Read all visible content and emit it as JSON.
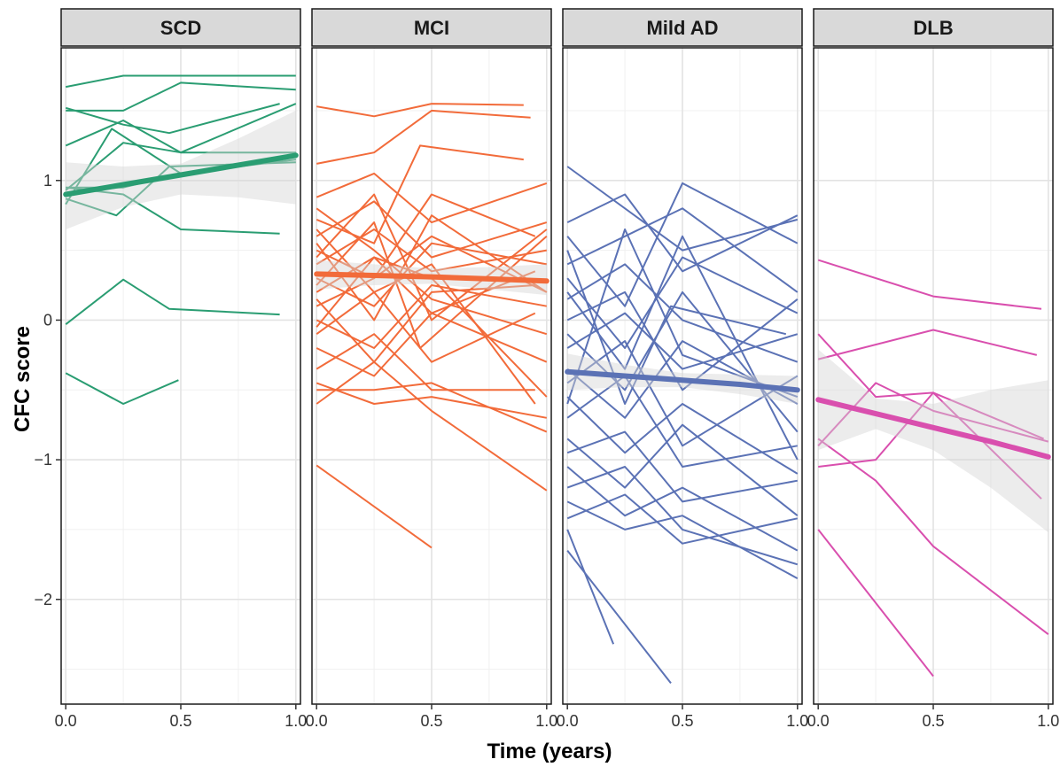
{
  "chart_data": {
    "type": "line",
    "xlabel": "Time (years)",
    "ylabel": "CFC score",
    "xlim": [
      -0.02,
      1.02
    ],
    "ylim": [
      -2.75,
      1.95
    ],
    "x_ticks": [
      0.0,
      0.5,
      1.0
    ],
    "x_tick_labels": [
      "0.0",
      "0.5",
      "1.0"
    ],
    "y_ticks": [
      1,
      0,
      -1,
      -2
    ],
    "y_tick_labels": [
      "1",
      "0",
      "−1",
      "−2"
    ],
    "grid": true,
    "legend": "none",
    "panels": [
      {
        "name": "SCD",
        "color": "#2a9d72",
        "trend": {
          "x": [
            0,
            0.25,
            0.5,
            0.75,
            1.0
          ],
          "y": [
            0.9,
            0.97,
            1.04,
            1.11,
            1.18
          ],
          "band_low": [
            0.65,
            0.81,
            0.9,
            0.88,
            0.83
          ],
          "band_high": [
            1.13,
            1.1,
            1.12,
            1.3,
            1.5
          ]
        },
        "subjects": [
          {
            "x": [
              0,
              0.25,
              1.0
            ],
            "y": [
              1.67,
              1.75,
              1.75
            ]
          },
          {
            "x": [
              0,
              0.25,
              0.5,
              1.0
            ],
            "y": [
              1.5,
              1.5,
              1.7,
              1.65
            ]
          },
          {
            "x": [
              0,
              0.25,
              0.45,
              0.93
            ],
            "y": [
              1.52,
              1.4,
              1.34,
              1.55
            ]
          },
          {
            "x": [
              0,
              0.25,
              0.5,
              1.0
            ],
            "y": [
              1.25,
              1.43,
              1.2,
              1.55
            ]
          },
          {
            "x": [
              0,
              0.2,
              0.5,
              1.0
            ],
            "y": [
              0.83,
              1.37,
              1.05,
              1.17
            ]
          },
          {
            "x": [
              0,
              0.25,
              0.5,
              1.0
            ],
            "y": [
              0.93,
              1.27,
              1.2,
              1.2
            ]
          },
          {
            "x": [
              0,
              0.25,
              0.5,
              1.0
            ],
            "y": [
              0.95,
              0.95,
              1.05,
              1.15
            ]
          },
          {
            "x": [
              0,
              0.22,
              0.45,
              1.0
            ],
            "y": [
              0.87,
              0.75,
              1.1,
              1.13
            ]
          },
          {
            "x": [
              0,
              0.25,
              0.5,
              0.93
            ],
            "y": [
              0.95,
              0.9,
              0.65,
              0.62
            ]
          },
          {
            "x": [
              0,
              0.25,
              0.45,
              0.93
            ],
            "y": [
              -0.03,
              0.29,
              0.08,
              0.04
            ]
          },
          {
            "x": [
              0,
              0.25,
              0.49
            ],
            "y": [
              -0.38,
              -0.6,
              -0.43
            ]
          }
        ]
      },
      {
        "name": "MCI",
        "color": "#f26b3a",
        "trend": {
          "x": [
            0,
            0.25,
            0.5,
            0.75,
            1.0
          ],
          "y": [
            0.33,
            0.32,
            0.31,
            0.295,
            0.28
          ],
          "band_low": [
            0.22,
            0.25,
            0.26,
            0.22,
            0.18
          ],
          "band_high": [
            0.43,
            0.4,
            0.37,
            0.38,
            0.4
          ]
        },
        "subjects": [
          {
            "x": [
              0,
              0.25,
              0.5,
              0.9
            ],
            "y": [
              1.53,
              1.46,
              1.55,
              1.54
            ]
          },
          {
            "x": [
              0,
              0.25,
              0.5,
              0.93
            ],
            "y": [
              1.12,
              1.2,
              1.5,
              1.45
            ]
          },
          {
            "x": [
              0,
              0.25,
              0.5,
              1.0
            ],
            "y": [
              0.88,
              1.05,
              0.7,
              0.98
            ]
          },
          {
            "x": [
              0,
              0.25,
              0.45,
              0.9
            ],
            "y": [
              0.72,
              0.55,
              1.25,
              1.15
            ]
          },
          {
            "x": [
              0,
              0.25,
              0.5,
              1.0
            ],
            "y": [
              0.6,
              0.85,
              0.45,
              0.7
            ]
          },
          {
            "x": [
              0,
              0.25,
              0.5,
              0.95
            ],
            "y": [
              0.5,
              0.3,
              0.9,
              0.6
            ]
          },
          {
            "x": [
              0,
              0.25,
              0.5,
              1.0
            ],
            "y": [
              0.4,
              0.65,
              0.35,
              0.5
            ]
          },
          {
            "x": [
              0,
              0.25,
              0.5,
              1.0
            ],
            "y": [
              0.3,
              0.1,
              0.55,
              0.4
            ]
          },
          {
            "x": [
              0,
              0.25,
              0.5,
              0.95
            ],
            "y": [
              0.2,
              0.45,
              0.05,
              0.35
            ]
          },
          {
            "x": [
              0,
              0.25,
              0.5,
              1.0
            ],
            "y": [
              0.1,
              0.3,
              0.6,
              0.2
            ]
          },
          {
            "x": [
              0,
              0.25,
              0.5,
              1.0
            ],
            "y": [
              0.0,
              -0.2,
              0.25,
              0.1
            ]
          },
          {
            "x": [
              0,
              0.25,
              0.5,
              0.95
            ],
            "y": [
              -0.1,
              0.2,
              -0.3,
              0.05
            ]
          },
          {
            "x": [
              0,
              0.25,
              0.5,
              1.0
            ],
            "y": [
              -0.2,
              -0.4,
              0.05,
              -0.3
            ]
          },
          {
            "x": [
              0,
              0.25,
              0.5,
              0.95
            ],
            "y": [
              -0.35,
              -0.1,
              -0.5,
              -0.5
            ]
          },
          {
            "x": [
              0,
              0.25,
              0.5,
              1.0
            ],
            "y": [
              -0.5,
              -0.5,
              -0.45,
              -0.8
            ]
          },
          {
            "x": [
              0,
              0.25,
              0.5,
              1.0
            ],
            "y": [
              -0.6,
              -0.3,
              -0.65,
              -1.22
            ]
          },
          {
            "x": [
              0,
              0.5
            ],
            "y": [
              -1.04,
              -1.63
            ]
          },
          {
            "x": [
              0,
              0.25,
              0.5,
              1.0
            ],
            "y": [
              0.8,
              0.5,
              0.15,
              -0.1
            ]
          },
          {
            "x": [
              0,
              0.25,
              0.5,
              1.0
            ],
            "y": [
              0.55,
              0.0,
              0.75,
              0.2
            ]
          },
          {
            "x": [
              0,
              0.25,
              0.45,
              1.0
            ],
            "y": [
              0.25,
              0.7,
              -0.2,
              0.6
            ]
          },
          {
            "x": [
              0,
              0.25,
              0.5,
              1.0
            ],
            "y": [
              -0.05,
              0.45,
              0.3,
              -0.55
            ]
          },
          {
            "x": [
              0,
              0.25,
              0.5,
              0.95
            ],
            "y": [
              0.65,
              0.2,
              0.4,
              -0.6
            ]
          },
          {
            "x": [
              0,
              0.25,
              0.5,
              1.0
            ],
            "y": [
              0.45,
              0.9,
              0.0,
              0.65
            ]
          },
          {
            "x": [
              0,
              0.25,
              0.5,
              1.0
            ],
            "y": [
              -0.45,
              -0.6,
              -0.55,
              -0.7
            ]
          },
          {
            "x": [
              0,
              0.25,
              0.5,
              0.95
            ],
            "y": [
              0.15,
              -0.3,
              0.2,
              0.25
            ]
          }
        ]
      },
      {
        "name": "Mild AD",
        "color": "#5b72b5",
        "trend": {
          "x": [
            0,
            0.25,
            0.5,
            0.75,
            1.0
          ],
          "y": [
            -0.37,
            -0.4,
            -0.43,
            -0.46,
            -0.5
          ],
          "band_low": [
            -0.5,
            -0.48,
            -0.48,
            -0.53,
            -0.6
          ],
          "band_high": [
            -0.24,
            -0.32,
            -0.38,
            -0.39,
            -0.4
          ]
        },
        "subjects": [
          {
            "x": [
              0,
              0.5,
              1.0
            ],
            "y": [
              1.1,
              0.5,
              0.72
            ]
          },
          {
            "x": [
              0,
              0.25,
              0.5,
              1.0
            ],
            "y": [
              0.7,
              0.9,
              0.35,
              0.75
            ]
          },
          {
            "x": [
              0,
              0.25,
              0.5,
              1.0
            ],
            "y": [
              0.6,
              0.1,
              0.98,
              0.55
            ]
          },
          {
            "x": [
              0,
              0.25,
              0.5,
              1.0
            ],
            "y": [
              0.4,
              0.6,
              0.8,
              0.2
            ]
          },
          {
            "x": [
              0,
              0.25,
              0.5,
              1.0
            ],
            "y": [
              0.3,
              -0.2,
              0.45,
              0.05
            ]
          },
          {
            "x": [
              0,
              0.25,
              0.5,
              1.0
            ],
            "y": [
              0.15,
              0.4,
              0.0,
              -0.3
            ]
          },
          {
            "x": [
              0,
              0.25,
              0.5,
              1.0
            ],
            "y": [
              0.0,
              0.2,
              -0.5,
              0.15
            ]
          },
          {
            "x": [
              0,
              0.25,
              0.5,
              1.0
            ],
            "y": [
              -0.1,
              -0.5,
              0.2,
              -0.8
            ]
          },
          {
            "x": [
              0,
              0.25,
              0.5,
              1.0
            ],
            "y": [
              -0.2,
              0.05,
              -0.35,
              -0.1
            ]
          },
          {
            "x": [
              0,
              0.25,
              0.5,
              1.0
            ],
            "y": [
              -0.35,
              -0.7,
              -0.15,
              -0.6
            ]
          },
          {
            "x": [
              0,
              0.25,
              0.5,
              1.0
            ],
            "y": [
              -0.45,
              -0.15,
              -0.9,
              -0.4
            ]
          },
          {
            "x": [
              0,
              0.25,
              0.5,
              1.0
            ],
            "y": [
              -0.55,
              -0.95,
              -0.6,
              -1.1
            ]
          },
          {
            "x": [
              0,
              0.25,
              0.5,
              1.0
            ],
            "y": [
              -0.7,
              -0.4,
              -1.05,
              -0.9
            ]
          },
          {
            "x": [
              0,
              0.25,
              0.5,
              1.0
            ],
            "y": [
              -0.85,
              -1.2,
              -0.75,
              -1.4
            ]
          },
          {
            "x": [
              0,
              0.25,
              0.5,
              1.0
            ],
            "y": [
              -0.95,
              -0.8,
              -1.3,
              -1.15
            ]
          },
          {
            "x": [
              0,
              0.25,
              0.5,
              1.0
            ],
            "y": [
              -1.05,
              -1.4,
              -1.2,
              -1.65
            ]
          },
          {
            "x": [
              0,
              0.25,
              0.5,
              1.0
            ],
            "y": [
              -1.2,
              -1.05,
              -1.5,
              -1.75
            ]
          },
          {
            "x": [
              0,
              0.25,
              0.5,
              1.0
            ],
            "y": [
              -1.3,
              -1.5,
              -1.4,
              -1.85
            ]
          },
          {
            "x": [
              0,
              0.25,
              0.5,
              1.0
            ],
            "y": [
              -1.42,
              -1.25,
              -1.6,
              -1.42
            ]
          },
          {
            "x": [
              0,
              0.2
            ],
            "y": [
              -1.5,
              -2.32
            ]
          },
          {
            "x": [
              0,
              0.45
            ],
            "y": [
              -1.65,
              -2.6
            ]
          },
          {
            "x": [
              0,
              0.25,
              0.45,
              0.95
            ],
            "y": [
              0.5,
              -0.6,
              0.1,
              -0.1
            ]
          },
          {
            "x": [
              0,
              0.25,
              0.5,
              1.0
            ],
            "y": [
              -0.6,
              0.65,
              -0.25,
              -0.55
            ]
          },
          {
            "x": [
              0,
              0.25,
              0.5,
              1.0
            ],
            "y": [
              0.2,
              -0.35,
              0.6,
              -1.0
            ]
          }
        ]
      },
      {
        "name": "DLB",
        "color": "#d94fae",
        "trend": {
          "x": [
            0,
            0.25,
            0.5,
            0.75,
            1.0
          ],
          "y": [
            -0.57,
            -0.67,
            -0.77,
            -0.87,
            -0.98
          ],
          "band_low": [
            -0.93,
            -0.78,
            -0.93,
            -1.2,
            -1.52
          ],
          "band_high": [
            -0.21,
            -0.56,
            -0.6,
            -0.5,
            -0.43
          ]
        },
        "subjects": [
          {
            "x": [
              0,
              0.5,
              0.97
            ],
            "y": [
              0.43,
              0.17,
              0.08
            ]
          },
          {
            "x": [
              0,
              0.5,
              0.95
            ],
            "y": [
              -0.28,
              -0.07,
              -0.25
            ]
          },
          {
            "x": [
              0,
              0.25,
              0.5,
              0.98
            ],
            "y": [
              -0.1,
              -0.55,
              -0.52,
              -0.85
            ]
          },
          {
            "x": [
              0,
              0.25,
              0.5,
              1.0
            ],
            "y": [
              -0.9,
              -0.45,
              -0.65,
              -0.87
            ]
          },
          {
            "x": [
              0,
              0.25,
              0.5,
              0.97
            ],
            "y": [
              -1.05,
              -1.0,
              -0.52,
              -1.28
            ]
          },
          {
            "x": [
              0,
              0.25,
              0.5,
              1.0
            ],
            "y": [
              -0.85,
              -1.15,
              -1.62,
              -2.25
            ]
          },
          {
            "x": [
              0,
              0.5
            ],
            "y": [
              -1.5,
              -2.55
            ]
          }
        ]
      }
    ]
  }
}
